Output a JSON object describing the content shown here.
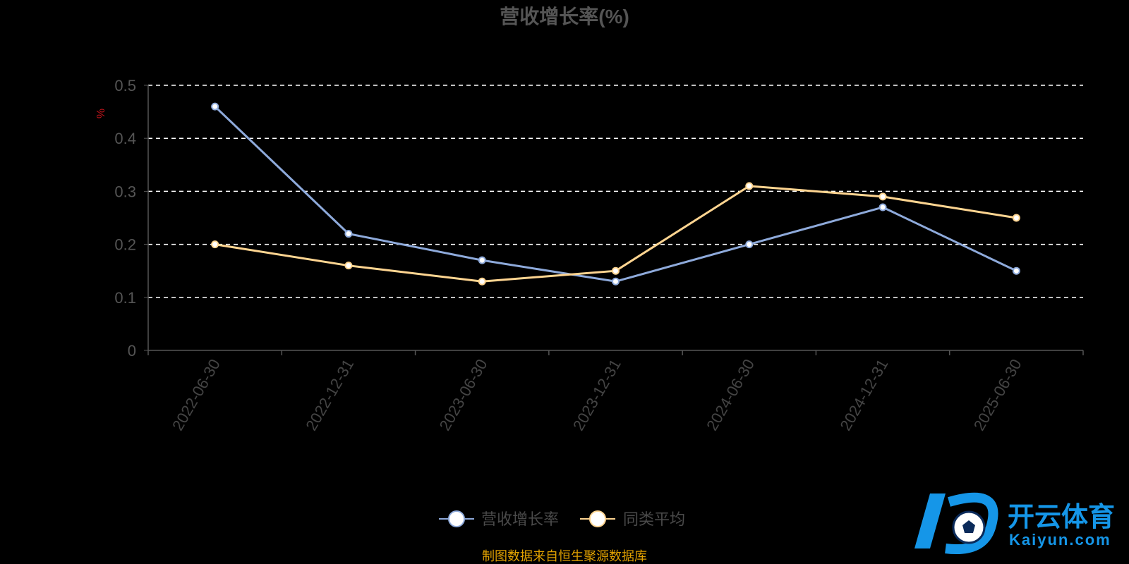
{
  "chart_data": {
    "type": "line",
    "title": "营收增长率(%)",
    "ylabel": "%",
    "ylim": [
      0,
      0.5
    ],
    "yticks": [
      "0",
      "0.1",
      "0.2",
      "0.3",
      "0.4",
      "0.5"
    ],
    "categories": [
      "2022-06-30",
      "2022-12-31",
      "2023-06-30",
      "2023-12-31",
      "2024-06-30",
      "2024-12-31",
      "2025-06-30"
    ],
    "grid": "dashed",
    "legend_position": "bottom",
    "series": [
      {
        "name": "营收增长率",
        "color": "#8eaadb",
        "values": [
          0.46,
          0.22,
          0.17,
          0.13,
          0.2,
          0.27,
          0.15
        ]
      },
      {
        "name": "同类平均",
        "color": "#ffd591",
        "values": [
          0.2,
          0.16,
          0.13,
          0.15,
          0.31,
          0.29,
          0.25
        ]
      }
    ]
  },
  "footer": {
    "source": "制图数据来自恒生聚源数据库"
  },
  "watermark": {
    "brand": "开云体育",
    "domain": "Kaiyun.com",
    "icon": "soccer-ball-icon"
  }
}
